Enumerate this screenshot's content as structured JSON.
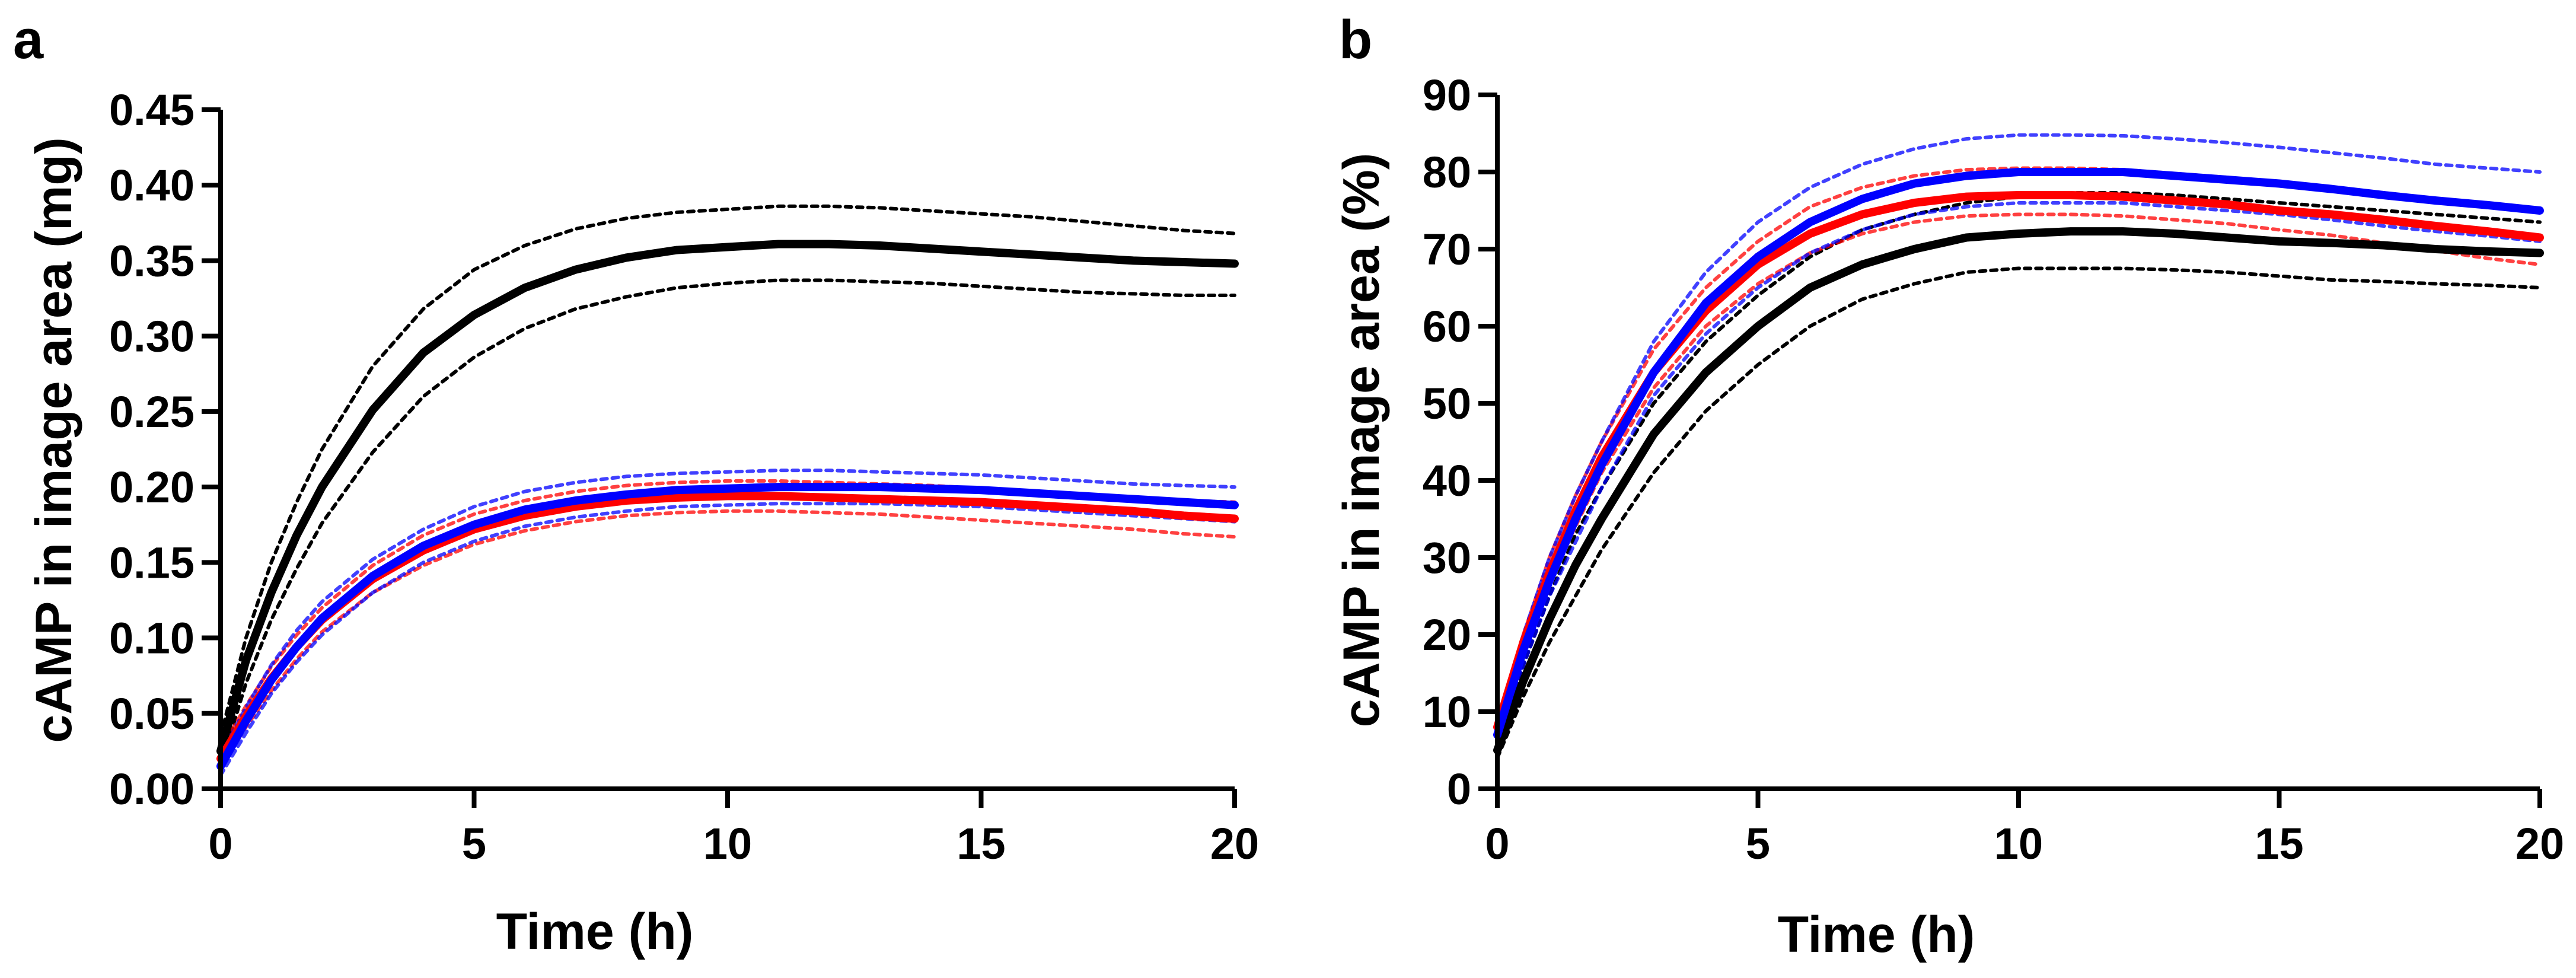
{
  "chart_data": [
    {
      "panel_label": "a",
      "type": "line",
      "xlabel": "Time (h)",
      "ylabel": "cAMP in image area (mg)",
      "xlim": [
        0,
        20
      ],
      "ylim": [
        0,
        0.45
      ],
      "xticks": [
        0,
        5,
        10,
        15,
        20
      ],
      "xtick_labels": [
        "0",
        "5",
        "10",
        "15",
        "20"
      ],
      "yticks": [
        0,
        0.05,
        0.1,
        0.15,
        0.2,
        0.25,
        0.3,
        0.35,
        0.4,
        0.45
      ],
      "ytick_labels": [
        "0.00",
        "0.05",
        "0.10",
        "0.15",
        "0.20",
        "0.25",
        "0.30",
        "0.35",
        "0.40",
        "0.45"
      ],
      "x": [
        0,
        0.5,
        1,
        1.5,
        2,
        3,
        4,
        5,
        6,
        7,
        8,
        9,
        10,
        11,
        12,
        13,
        14,
        15,
        16,
        17,
        18,
        19,
        20
      ],
      "series": [
        {
          "name": "black mean",
          "color": "#000000",
          "style": "solid",
          "values": [
            0.025,
            0.085,
            0.13,
            0.168,
            0.2,
            0.251,
            0.289,
            0.314,
            0.332,
            0.344,
            0.352,
            0.357,
            0.359,
            0.361,
            0.361,
            0.36,
            0.358,
            0.356,
            0.354,
            0.352,
            0.35,
            0.349,
            0.348
          ]
        },
        {
          "name": "black upper",
          "color": "#000000",
          "style": "dotted",
          "values": [
            0.035,
            0.1,
            0.15,
            0.19,
            0.225,
            0.28,
            0.318,
            0.344,
            0.36,
            0.371,
            0.378,
            0.382,
            0.384,
            0.386,
            0.386,
            0.385,
            0.383,
            0.381,
            0.379,
            0.376,
            0.373,
            0.37,
            0.368
          ]
        },
        {
          "name": "black lower",
          "color": "#000000",
          "style": "dotted",
          "values": [
            0.015,
            0.07,
            0.112,
            0.146,
            0.176,
            0.223,
            0.26,
            0.286,
            0.305,
            0.318,
            0.326,
            0.332,
            0.335,
            0.337,
            0.337,
            0.336,
            0.335,
            0.333,
            0.331,
            0.329,
            0.328,
            0.327,
            0.327
          ]
        },
        {
          "name": "red mean",
          "color": "#ff0000",
          "style": "solid",
          "values": [
            0.02,
            0.048,
            0.073,
            0.094,
            0.112,
            0.139,
            0.158,
            0.172,
            0.181,
            0.187,
            0.191,
            0.193,
            0.194,
            0.194,
            0.193,
            0.192,
            0.191,
            0.19,
            0.188,
            0.186,
            0.184,
            0.181,
            0.179
          ]
        },
        {
          "name": "red upper",
          "color": "#ff0000",
          "style": "dotted",
          "values": [
            0.026,
            0.055,
            0.081,
            0.102,
            0.12,
            0.148,
            0.168,
            0.182,
            0.191,
            0.197,
            0.201,
            0.203,
            0.204,
            0.204,
            0.203,
            0.202,
            0.201,
            0.199,
            0.197,
            0.195,
            0.193,
            0.191,
            0.19
          ]
        },
        {
          "name": "red lower",
          "color": "#ff0000",
          "style": "dotted",
          "values": [
            0.014,
            0.041,
            0.065,
            0.086,
            0.104,
            0.13,
            0.148,
            0.162,
            0.171,
            0.177,
            0.181,
            0.183,
            0.184,
            0.184,
            0.183,
            0.182,
            0.18,
            0.178,
            0.176,
            0.174,
            0.172,
            0.169,
            0.167
          ]
        },
        {
          "name": "blue mean",
          "color": "#0000ff",
          "style": "solid",
          "values": [
            0.015,
            0.045,
            0.072,
            0.094,
            0.113,
            0.141,
            0.161,
            0.175,
            0.185,
            0.191,
            0.195,
            0.198,
            0.199,
            0.2,
            0.2,
            0.2,
            0.199,
            0.198,
            0.196,
            0.194,
            0.192,
            0.19,
            0.188
          ]
        },
        {
          "name": "blue upper",
          "color": "#0000ff",
          "style": "dotted",
          "values": [
            0.022,
            0.054,
            0.082,
            0.105,
            0.124,
            0.152,
            0.172,
            0.187,
            0.197,
            0.203,
            0.207,
            0.209,
            0.21,
            0.211,
            0.211,
            0.21,
            0.209,
            0.208,
            0.206,
            0.204,
            0.202,
            0.201,
            0.2
          ]
        },
        {
          "name": "blue lower",
          "color": "#0000ff",
          "style": "dotted",
          "values": [
            0.009,
            0.037,
            0.063,
            0.084,
            0.102,
            0.13,
            0.15,
            0.164,
            0.174,
            0.18,
            0.184,
            0.187,
            0.188,
            0.189,
            0.189,
            0.189,
            0.188,
            0.187,
            0.185,
            0.183,
            0.181,
            0.179,
            0.177
          ]
        }
      ]
    },
    {
      "panel_label": "b",
      "type": "line",
      "xlabel": "Time (h)",
      "ylabel": "cAMP in image area (%)",
      "xlim": [
        0,
        20
      ],
      "ylim": [
        0,
        90
      ],
      "xticks": [
        0,
        5,
        10,
        15,
        20
      ],
      "xtick_labels": [
        "0",
        "5",
        "10",
        "15",
        "20"
      ],
      "yticks": [
        0,
        10,
        20,
        30,
        40,
        50,
        60,
        70,
        80,
        90
      ],
      "ytick_labels": [
        "0",
        "10",
        "20",
        "30",
        "40",
        "50",
        "60",
        "70",
        "80",
        "90"
      ],
      "x": [
        0,
        0.5,
        1,
        1.5,
        2,
        3,
        4,
        5,
        6,
        7,
        8,
        9,
        10,
        11,
        12,
        13,
        14,
        15,
        16,
        17,
        18,
        19,
        20
      ],
      "series": [
        {
          "name": "black mean",
          "color": "#000000",
          "style": "solid",
          "values": [
            5,
            14,
            22,
            29,
            35,
            46,
            54,
            60,
            65,
            68,
            70,
            71.5,
            72,
            72.3,
            72.3,
            72,
            71.5,
            71,
            70.8,
            70.5,
            70,
            69.7,
            69.5
          ]
        },
        {
          "name": "black upper",
          "color": "#000000",
          "style": "dotted",
          "values": [
            6,
            16,
            25,
            33,
            39,
            50,
            58,
            64,
            69,
            72.5,
            74.5,
            76,
            76.8,
            77.3,
            77.3,
            77,
            76.5,
            76,
            75.5,
            75,
            74.5,
            74,
            73.5
          ]
        },
        {
          "name": "black lower",
          "color": "#000000",
          "style": "dotted",
          "values": [
            4,
            12,
            19,
            25,
            31,
            41,
            49,
            55,
            60,
            63.5,
            65.5,
            67,
            67.5,
            67.5,
            67.5,
            67.3,
            67,
            66.5,
            66,
            65.8,
            65.5,
            65.3,
            65
          ]
        },
        {
          "name": "red mean",
          "color": "#ff0000",
          "style": "solid",
          "values": [
            8,
            19,
            28,
            36,
            43,
            54,
            62,
            68,
            72,
            74.5,
            76,
            76.8,
            77,
            77,
            76.8,
            76.3,
            75.8,
            75,
            74.5,
            73.8,
            73,
            72.3,
            71.5
          ]
        },
        {
          "name": "red upper",
          "color": "#ff0000",
          "style": "dotted",
          "values": [
            9,
            20,
            30,
            38,
            45,
            57,
            65,
            71,
            75.5,
            78,
            79.5,
            80.3,
            80.5,
            80.5,
            80.3,
            79.8,
            79.3,
            78.5,
            78,
            77.3,
            76.5,
            75.8,
            75
          ]
        },
        {
          "name": "red lower",
          "color": "#ff0000",
          "style": "dotted",
          "values": [
            7,
            18,
            27,
            34,
            41,
            52,
            60,
            65.5,
            69.5,
            72,
            73.5,
            74.3,
            74.5,
            74.5,
            74.3,
            73.8,
            73.3,
            72.5,
            71.8,
            70.8,
            69.8,
            68.8,
            68
          ]
        },
        {
          "name": "blue mean",
          "color": "#0000ff",
          "style": "solid",
          "values": [
            7,
            18,
            27,
            35,
            42,
            54,
            63,
            69,
            73.5,
            76.5,
            78.5,
            79.5,
            80,
            80,
            80,
            79.5,
            79,
            78.5,
            77.8,
            77,
            76.3,
            75.7,
            75
          ]
        },
        {
          "name": "blue upper",
          "color": "#0000ff",
          "style": "dotted",
          "values": [
            8,
            20,
            30,
            38,
            45,
            58,
            67,
            73.5,
            78,
            81,
            83,
            84.3,
            84.8,
            84.8,
            84.7,
            84.3,
            83.8,
            83.2,
            82.5,
            81.8,
            81,
            80.5,
            80
          ]
        },
        {
          "name": "blue lower",
          "color": "#0000ff",
          "style": "dotted",
          "values": [
            6,
            16,
            25,
            32,
            39,
            51,
            59,
            65,
            69.5,
            72.5,
            74.5,
            75.5,
            76,
            76,
            76,
            75.5,
            75,
            74.5,
            73.8,
            73,
            72.3,
            71.7,
            71
          ]
        }
      ]
    }
  ]
}
